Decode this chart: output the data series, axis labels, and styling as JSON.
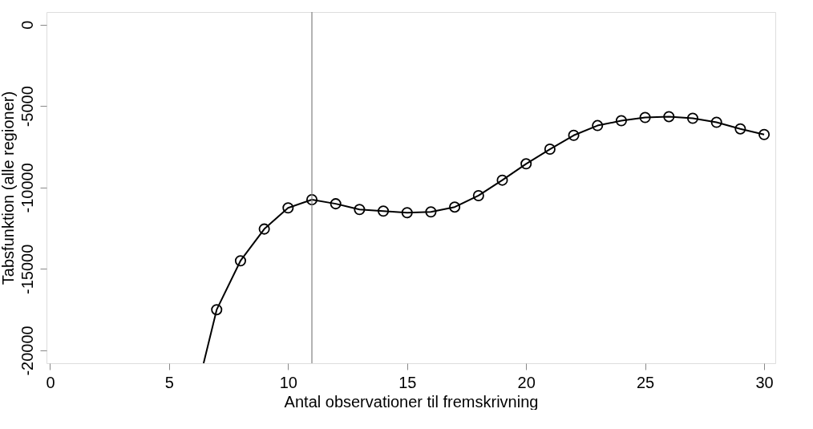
{
  "chart_data": {
    "type": "line",
    "xlabel": "Antal observationer til fremskrivning",
    "ylabel": "Tabsfunktion (alle regioner)",
    "xlim": [
      -0.15,
      30.47
    ],
    "ylim": [
      -20790,
      770
    ],
    "xticks": [
      0,
      5,
      10,
      15,
      20,
      25,
      30
    ],
    "yticks": [
      0,
      -5000,
      -10000,
      -15000,
      -20000
    ],
    "grid": false,
    "series": [
      {
        "type": "line",
        "marker": "none",
        "color": "#000000",
        "x": [
          6.45,
          7,
          8,
          9,
          10,
          11,
          12,
          13,
          14,
          15,
          16,
          17,
          18,
          19,
          20,
          21,
          22,
          23,
          24,
          25,
          26,
          27,
          28,
          29,
          30
        ],
        "values": [
          -20790,
          -17500,
          -14500,
          -12550,
          -11250,
          -10750,
          -11000,
          -11350,
          -11450,
          -11550,
          -11500,
          -11200,
          -10500,
          -9550,
          -8550,
          -7650,
          -6800,
          -6200,
          -5900,
          -5700,
          -5650,
          -5750,
          -6000,
          -6400,
          -6750
        ]
      },
      {
        "type": "scatter",
        "marker": "circle",
        "color": "#000000",
        "x": [
          7,
          8,
          9,
          10,
          11,
          12,
          13,
          14,
          15,
          16,
          17,
          18,
          19,
          20,
          21,
          22,
          23,
          24,
          25,
          26,
          27,
          28,
          29,
          30
        ],
        "values": [
          -17500,
          -14500,
          -12550,
          -11250,
          -10750,
          -11000,
          -11350,
          -11450,
          -11550,
          -11500,
          -11200,
          -10500,
          -9550,
          -8550,
          -7650,
          -6800,
          -6200,
          -5900,
          -5700,
          -5650,
          -5750,
          -6000,
          -6400,
          -6750
        ]
      }
    ],
    "ref_lines": [
      {
        "axis": "x",
        "value": 11,
        "color": "#808080"
      }
    ]
  }
}
